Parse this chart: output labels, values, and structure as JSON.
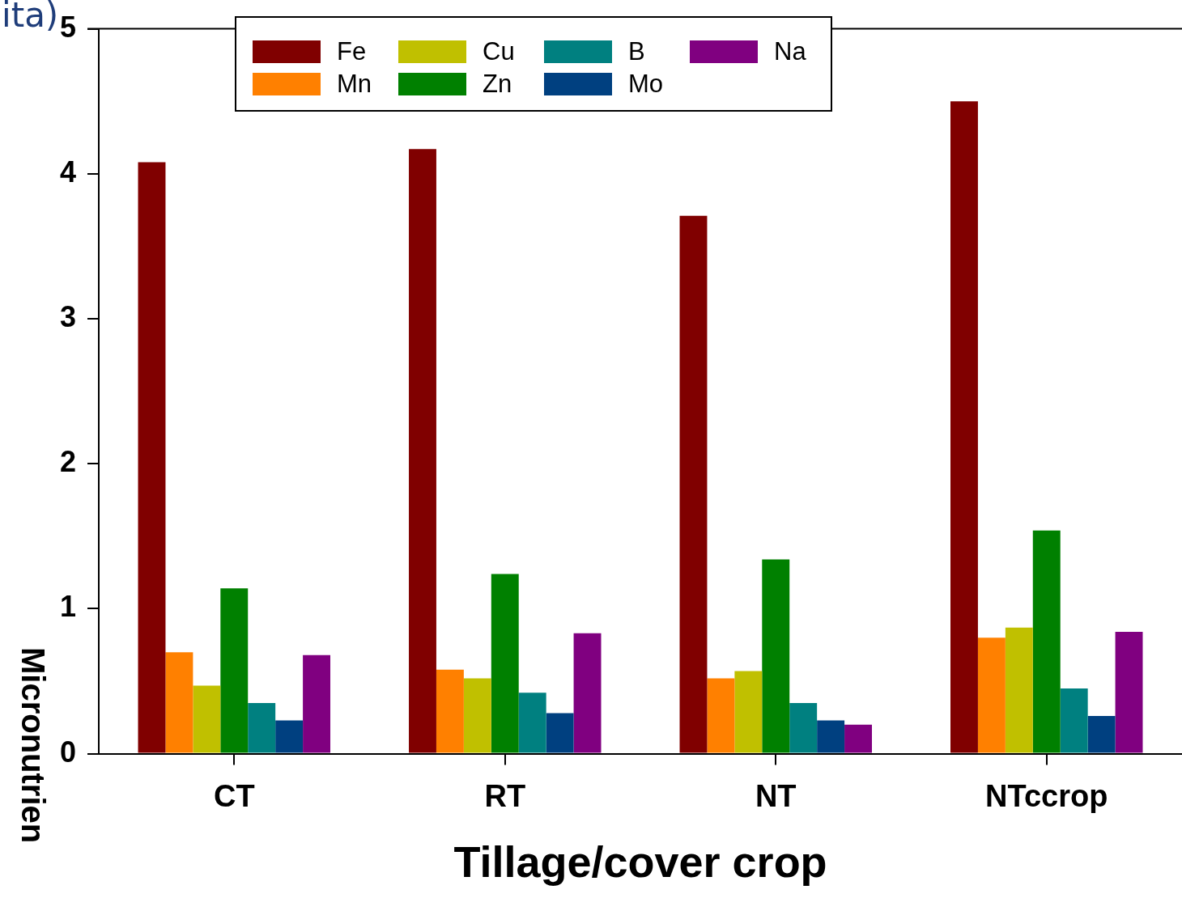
{
  "chart_data": {
    "type": "bar",
    "title": "ita)",
    "xlabel": "Tillage/cover crop",
    "ylabel": "Micronutrien",
    "categories": [
      "CT",
      "RT",
      "NT",
      "NTccrop"
    ],
    "series": [
      {
        "name": "Fe",
        "color": "#800000",
        "values": [
          4.08,
          4.17,
          3.71,
          4.5
        ]
      },
      {
        "name": "Mn",
        "color": "#ff8000",
        "values": [
          0.7,
          0.58,
          0.52,
          0.8
        ]
      },
      {
        "name": "Cu",
        "color": "#c0c000",
        "values": [
          0.47,
          0.52,
          0.57,
          0.87
        ]
      },
      {
        "name": "Zn",
        "color": "#008000",
        "values": [
          1.14,
          1.24,
          1.34,
          1.54
        ]
      },
      {
        "name": "B",
        "color": "#008080",
        "values": [
          0.35,
          0.42,
          0.35,
          0.45
        ]
      },
      {
        "name": "Mo",
        "color": "#004080",
        "values": [
          0.23,
          0.28,
          0.23,
          0.26
        ]
      },
      {
        "name": "Na",
        "color": "#800080",
        "values": [
          0.68,
          0.83,
          0.2,
          0.84
        ]
      }
    ],
    "ylim": [
      0,
      5
    ],
    "yticks": [
      0,
      1,
      2,
      3,
      4,
      5
    ],
    "grid": false,
    "legend": "top left"
  }
}
